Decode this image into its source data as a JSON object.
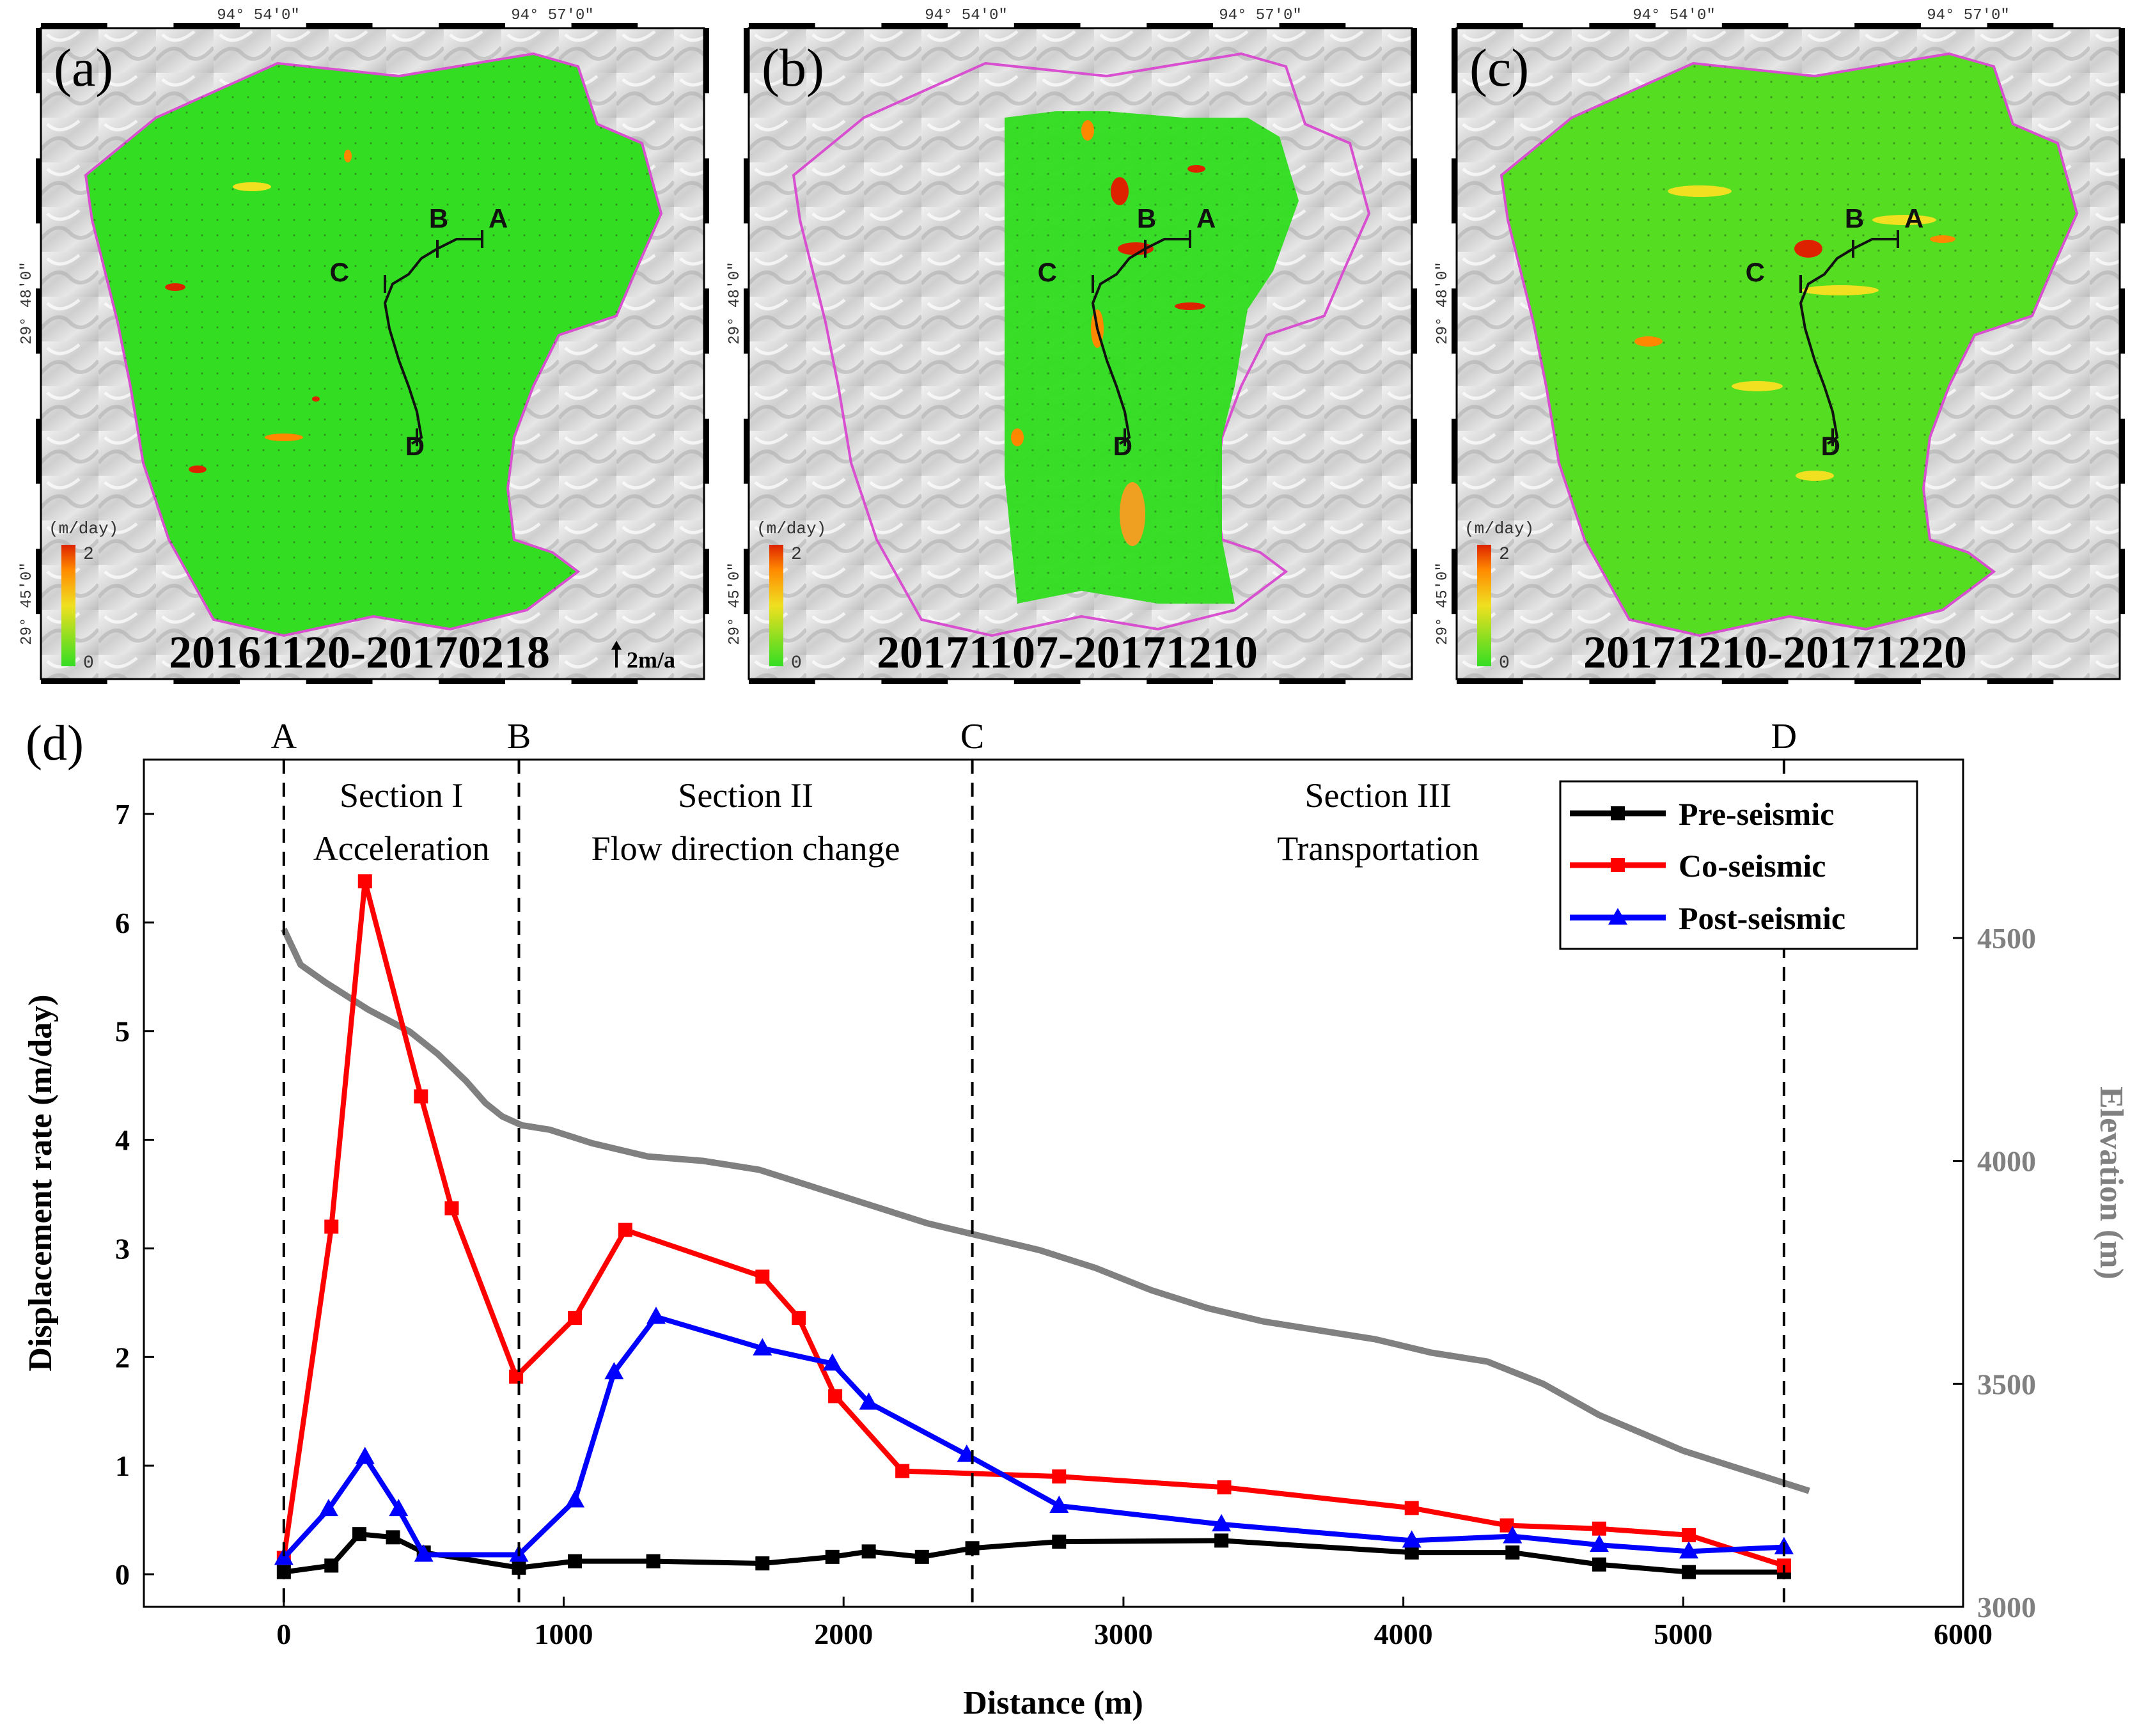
{
  "panels": [
    {
      "label": "(a)",
      "date_range": "20161120-20170218",
      "coverage": "full",
      "scale_arrow_label": "2m/a",
      "lon_ticks": [
        "94° 54′0″",
        "94° 57′0″"
      ],
      "lat_ticks": [
        "29° 48′0″",
        "29° 45′0″"
      ],
      "colorbar": {
        "unit": "(m/day)",
        "max": "2",
        "min": "0"
      },
      "profile_points": [
        "A",
        "B",
        "C",
        "D"
      ]
    },
    {
      "label": "(b)",
      "date_range": "20171107-20171210",
      "coverage": "strip",
      "lon_ticks": [
        "94° 54′0″",
        "94° 57′0″"
      ],
      "lat_ticks": [
        "29° 48′0″",
        "29° 45′0″"
      ],
      "colorbar": {
        "unit": "(m/day)",
        "max": "2",
        "min": "0"
      },
      "profile_points": [
        "A",
        "B",
        "C",
        "D"
      ]
    },
    {
      "label": "(c)",
      "date_range": "20171210-20171220",
      "coverage": "full",
      "lon_ticks": [
        "94° 54′0″",
        "94° 57′0″"
      ],
      "lat_ticks": [
        "29° 48′0″",
        "29° 45′0″"
      ],
      "colorbar": {
        "unit": "(m/day)",
        "max": "2",
        "min": "0"
      },
      "profile_points": [
        "A",
        "B",
        "C",
        "D"
      ]
    }
  ],
  "colors": {
    "pre": "#000000",
    "co": "#ff0000",
    "post": "#0000ff",
    "elevation": "#808080",
    "velocity_low": "#33dd22",
    "velocity_high": "#dd2200",
    "outline": "#d84fd0"
  },
  "chart_data": {
    "type": "line",
    "panel_label": "(d)",
    "xlabel": "Distance (m)",
    "ylabel": "Displacement rate (m/day)",
    "y2label": "Elevation (m)",
    "xlim": [
      -500,
      6000
    ],
    "ylim": [
      -0.3,
      7.5
    ],
    "y2lim": [
      3000,
      4900
    ],
    "x_ticks": [
      0,
      1000,
      2000,
      3000,
      4000,
      5000,
      6000
    ],
    "y_ticks": [
      0,
      1,
      2,
      3,
      4,
      5,
      6,
      7
    ],
    "y2_ticks": [
      3000,
      3500,
      4000,
      4500
    ],
    "point_markers": [
      {
        "label": "A",
        "x": 0
      },
      {
        "label": "B",
        "x": 840
      },
      {
        "label": "C",
        "x": 2460
      },
      {
        "label": "D",
        "x": 5360
      }
    ],
    "sections": [
      {
        "name": "Section I",
        "desc": "Acceleration",
        "x_center": 420
      },
      {
        "name": "Section II",
        "desc": "Flow direction change",
        "x_center": 1650
      },
      {
        "name": "Section III",
        "desc": "Transportation",
        "x_center": 3910
      }
    ],
    "series": [
      {
        "name": "Pre-seismic",
        "marker": "square",
        "x": [
          0,
          170,
          270,
          390,
          500,
          840,
          1040,
          1320,
          1710,
          1960,
          2090,
          2280,
          2460,
          2770,
          3350,
          4030,
          4390,
          4700,
          5020,
          5360
        ],
        "y": [
          0.02,
          0.08,
          0.37,
          0.34,
          0.2,
          0.06,
          0.12,
          0.12,
          0.1,
          0.16,
          0.21,
          0.16,
          0.24,
          0.3,
          0.31,
          0.2,
          0.2,
          0.09,
          0.02,
          0.02
        ]
      },
      {
        "name": "Co-seismic",
        "marker": "square",
        "x": [
          0,
          170,
          290,
          490,
          600,
          830,
          1040,
          1220,
          1710,
          1840,
          1970,
          2210,
          2770,
          3360,
          4030,
          4370,
          4700,
          5020,
          5360
        ],
        "y": [
          0.15,
          3.2,
          6.38,
          4.4,
          3.37,
          1.82,
          2.36,
          3.17,
          2.74,
          2.36,
          1.64,
          0.95,
          0.9,
          0.8,
          0.61,
          0.45,
          0.42,
          0.36,
          0.08
        ]
      },
      {
        "name": "Post-seismic",
        "marker": "triangle",
        "x": [
          0,
          160,
          290,
          410,
          500,
          840,
          1040,
          1180,
          1330,
          1710,
          1960,
          2090,
          2440,
          2770,
          3350,
          4030,
          4390,
          4700,
          5020,
          5360
        ],
        "y": [
          0.15,
          0.6,
          1.08,
          0.6,
          0.18,
          0.18,
          0.68,
          1.86,
          2.37,
          2.08,
          1.94,
          1.58,
          1.1,
          0.63,
          0.46,
          0.31,
          0.35,
          0.27,
          0.21,
          0.25
        ]
      }
    ],
    "elevation": {
      "name": "Elevation",
      "x": [
        0,
        60,
        150,
        300,
        450,
        550,
        650,
        720,
        780,
        850,
        950,
        1100,
        1300,
        1500,
        1700,
        1900,
        2100,
        2300,
        2500,
        2700,
        2900,
        3100,
        3300,
        3500,
        3700,
        3900,
        4100,
        4300,
        4500,
        4700,
        4850,
        5000,
        5200,
        5350,
        5450
      ],
      "y": [
        4520,
        4440,
        4400,
        4340,
        4290,
        4240,
        4180,
        4130,
        4100,
        4080,
        4070,
        4040,
        4010,
        4000,
        3980,
        3940,
        3900,
        3860,
        3830,
        3800,
        3760,
        3710,
        3670,
        3640,
        3620,
        3600,
        3570,
        3550,
        3500,
        3430,
        3390,
        3350,
        3310,
        3280,
        3260
      ]
    }
  }
}
